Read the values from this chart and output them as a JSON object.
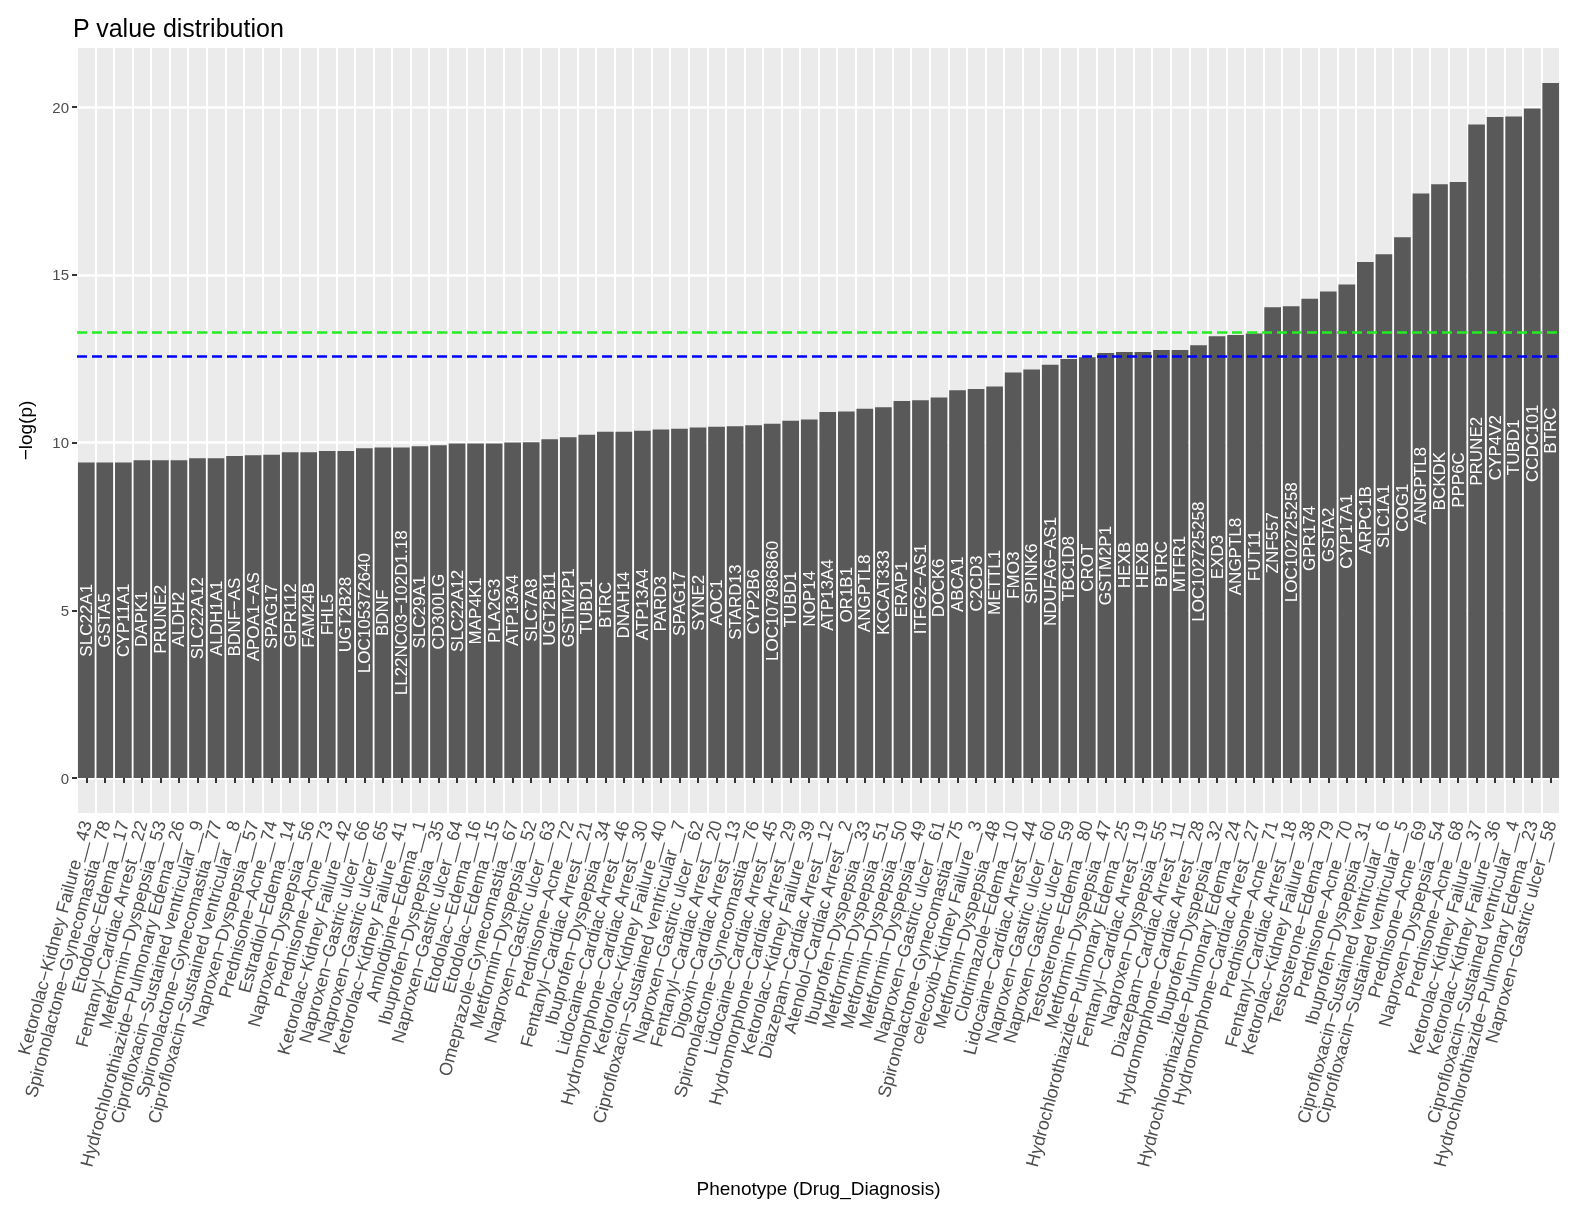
{
  "chart_data": {
    "type": "bar",
    "title": "P value distribution",
    "xlabel": "Phenotype (Drug_Diagnosis)",
    "ylabel": "−log(p)",
    "categories": [
      "Ketorolac−Kidney Failure__43",
      "Spironolactone−Gynecomastia__78",
      "Etodolac−Edema__17",
      "Fentanyl−Cardiac Arrest__22",
      "Metformin−Dyspepsia__53",
      "Hydrochlorothiazide−Pulmonary Edema__26",
      "Ciprofloxacin−Sustained ventricular__9",
      "Spironolactone−Gynecomastia__77",
      "Ciprofloxacin−Sustained ventricular__8",
      "Naproxen−Dyspepsia__57",
      "Prednisone−Acne__74",
      "Estradiol−Edema__14",
      "Naproxen−Dyspepsia__56",
      "Prednisone−Acne__73",
      "Ketorolac−Kidney Failure__42",
      "Naproxen−Gastric ulcer__66",
      "Naproxen−Gastric ulcer__65",
      "Ketorolac−Kidney Failure__41",
      "Amlodipine−Edema__1",
      "Ibuprofen−Dyspepsia__35",
      "Naproxen−Gastric ulcer__64",
      "Etodolac−Edema__16",
      "Etodolac−Edema__15",
      "Omeprazole−Gynecomastia__67",
      "Metformin−Dyspepsia__52",
      "Naproxen−Gastric ulcer__63",
      "Prednisone−Acne__72",
      "Fentanyl−Cardiac Arrest__21",
      "Ibuprofen−Dyspepsia__34",
      "Lidocaine−Cardiac Arrest__46",
      "Hydromorphone−Cardiac Arrest__30",
      "Ketorolac−Kidney Failure__40",
      "Ciprofloxacin−Sustained ventricular__7",
      "Naproxen−Gastric ulcer__62",
      "Fentanyl−Cardiac Arrest__20",
      "Digoxin−Cardiac Arrest__13",
      "Spironolactone−Gynecomastia__76",
      "Lidocaine−Cardiac Arrest__45",
      "Hydromorphone−Cardiac Arrest__29",
      "Ketorolac−Kidney Failure__39",
      "Diazepam−Cardiac Arrest__12",
      "Atenolol−Cardiac Arrest__2",
      "Ibuprofen−Dyspepsia__33",
      "Metformin−Dyspepsia__51",
      "Metformin−Dyspepsia__50",
      "Metformin−Dyspepsia__49",
      "Naproxen−Gastric ulcer__61",
      "Spironolactone−Gynecomastia__75",
      "celecoxib−Kidney Failure__3",
      "Metformin−Dyspepsia__48",
      "Clotrimazole−Edema__10",
      "Lidocaine−Cardiac Arrest__44",
      "Naproxen−Gastric ulcer__60",
      "Naproxen−Gastric ulcer__59",
      "Testosterone−Edema__80",
      "Metformin−Dyspepsia__47",
      "Hydrochlorothiazide−Pulmonary Edema__25",
      "Fentanyl−Cardiac Arrest__19",
      "Naproxen−Dyspepsia__55",
      "Diazepam−Cardiac Arrest__11",
      "Hydromorphone−Cardiac Arrest__28",
      "Ibuprofen−Dyspepsia__32",
      "Hydrochlorothiazide−Pulmonary Edema__24",
      "Hydromorphone−Cardiac Arrest__27",
      "Prednisone−Acne__71",
      "Fentanyl−Cardiac Arrest__18",
      "Ketorolac−Kidney Failure__38",
      "Testosterone−Edema__79",
      "Prednisone−Acne__70",
      "Ibuprofen−Dyspepsia__31",
      "Ciprofloxacin−Sustained ventricular__6",
      "Ciprofloxacin−Sustained ventricular__5",
      "Prednisone−Acne__69",
      "Naproxen−Dyspepsia__54",
      "Prednisone−Acne__68",
      "Ketorolac−Kidney Failure__37",
      "Ketorolac−Kidney Failure__36",
      "Ciprofloxacin−Sustained ventricular__4",
      "Hydrochlorothiazide−Pulmonary Edema__23",
      "Naproxen−Gastric ulcer__58"
    ],
    "values": [
      9.41,
      9.41,
      9.41,
      9.47,
      9.47,
      9.47,
      9.53,
      9.53,
      9.6,
      9.62,
      9.64,
      9.71,
      9.71,
      9.75,
      9.75,
      9.83,
      9.85,
      9.85,
      9.89,
      9.92,
      9.97,
      9.97,
      9.97,
      10.0,
      10.01,
      10.1,
      10.16,
      10.23,
      10.32,
      10.32,
      10.35,
      10.39,
      10.41,
      10.45,
      10.47,
      10.49,
      10.52,
      10.56,
      10.65,
      10.69,
      10.91,
      10.93,
      11.01,
      11.05,
      11.24,
      11.26,
      11.34,
      11.56,
      11.6,
      11.67,
      12.09,
      12.18,
      12.32,
      12.49,
      12.54,
      12.67,
      12.7,
      12.7,
      12.76,
      12.76,
      12.9,
      13.17,
      13.21,
      13.25,
      14.03,
      14.06,
      14.29,
      14.5,
      14.71,
      15.38,
      15.61,
      16.12,
      17.42,
      17.7,
      17.77,
      19.48,
      19.7,
      19.72,
      19.96,
      20.72
    ],
    "color": "#595959",
    "ylim": [
      -1.04,
      21.76
    ],
    "yticks": [
      0,
      5,
      10,
      15,
      20
    ],
    "grid": true,
    "ref_lines": [
      {
        "axis": "y",
        "value": 13.29,
        "color": "#22ee22",
        "line_style": "dashed"
      },
      {
        "axis": "y",
        "value": 12.58,
        "color": "#0000ff",
        "line_style": "dashed"
      }
    ],
    "annotations": [
      "SLC22A1",
      "GSTA5",
      "CYP11A1",
      "DAPK1",
      "PRUNE2",
      "ALDH2",
      "SLC22A12",
      "ALDH1A1",
      "BDNF−AS",
      "APOA1−AS",
      "SPAG17",
      "GPR112",
      "FAM24B",
      "FHL5",
      "UGT2B28",
      "LOC105372640",
      "BDNF",
      "LL22NC03−102D1.18",
      "SLC29A1",
      "CD300LG",
      "SLC22A12",
      "MAP4K1",
      "PLA2G3",
      "ATP13A4",
      "SLC7A8",
      "UGT2B11",
      "GSTM2P1",
      "TUBD1",
      "BTRC",
      "DNAH14",
      "ATP13A4",
      "PARD3",
      "SPAG17",
      "SYNE2",
      "AOC1",
      "STARD13",
      "CYP2B6",
      "LOC107986860",
      "TUBD1",
      "NOP14",
      "ATP13A4",
      "OR1B1",
      "ANGPTL8",
      "KCCAT333",
      "ERAP1",
      "ITFG2−AS1",
      "DOCK6",
      "ABCA1",
      "C2CD3",
      "METTL1",
      "FMO3",
      "SPINK6",
      "NDUFA6−AS1",
      "TBC1D8",
      "CROT",
      "GSTM2P1",
      "HEXB",
      "HEXB",
      "BTRC",
      "MTFR1",
      "LOC102725258",
      "EXD3",
      "ANGPTL8",
      "FUT11",
      "ZNF557",
      "LOC102725258",
      "GPR174",
      "GSTA2",
      "CYP17A1",
      "ARPC1B",
      "SLC1A1",
      "COG1",
      "ANGPTL8",
      "BCKDK",
      "PPP6C",
      "PRUNE2",
      "CYP4V2",
      "TUBD1",
      "CCDC101",
      "BTRC"
    ]
  }
}
